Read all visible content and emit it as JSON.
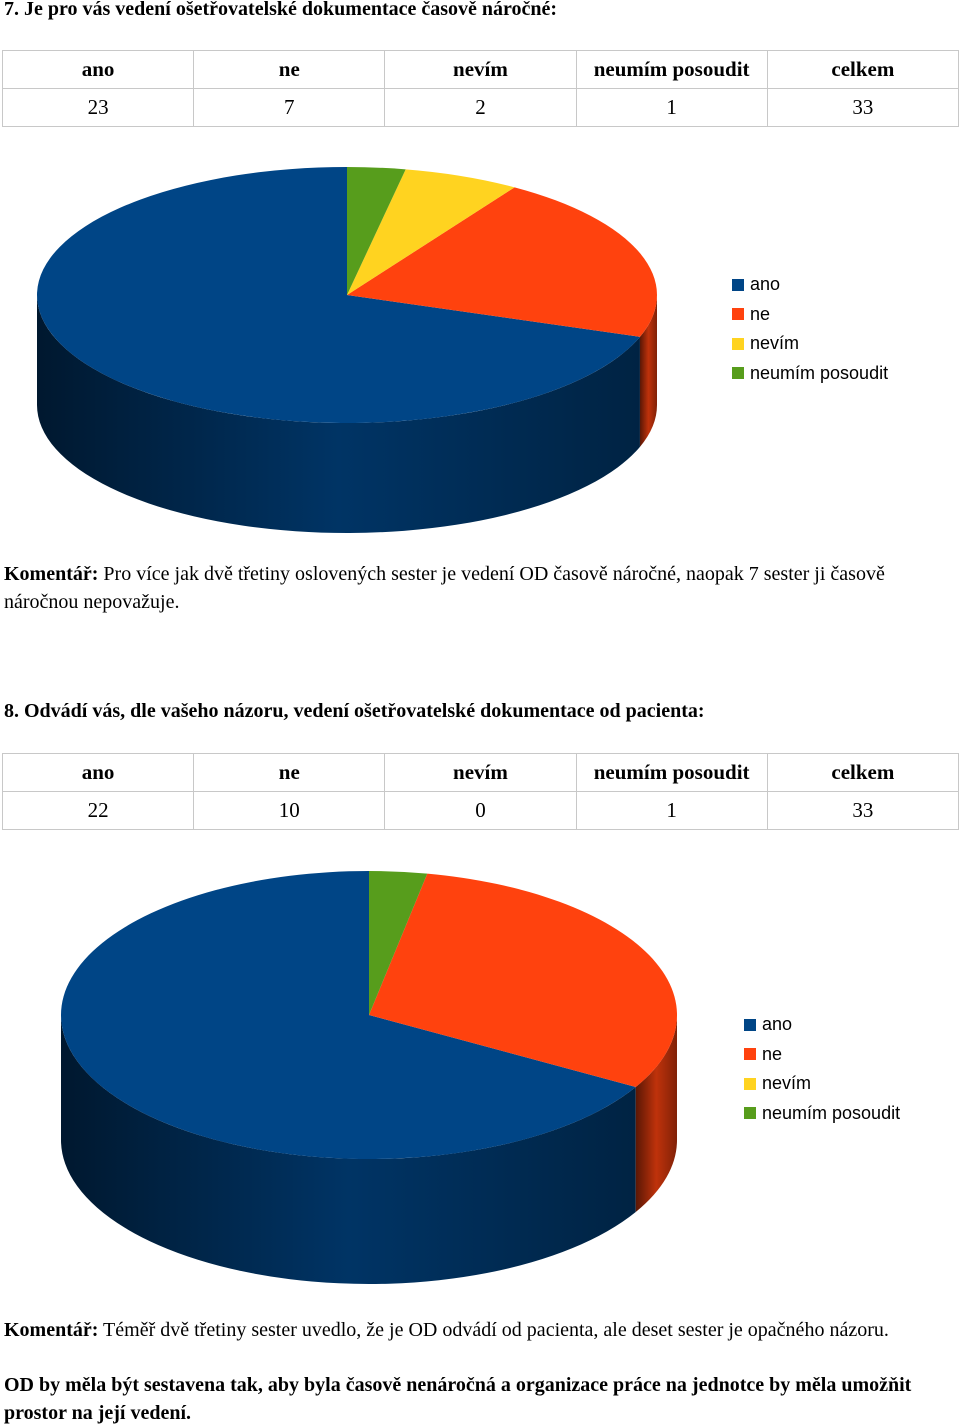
{
  "q7": {
    "title": "7. Je pro vás vedení ošetřovatelské dokumentace časově náročné:",
    "headers": [
      "ano",
      "ne",
      "nevím",
      "neumím posoudit",
      "celkem"
    ],
    "values": [
      "23",
      "7",
      "2",
      "1",
      "33"
    ],
    "comment_label": "Komentář:",
    "comment_text": " Pro více jak dvě třetiny oslovených sester je vedení OD časově náročné, naopak 7 sester ji časově náročnou nepovažuje."
  },
  "q8": {
    "title": "8. Odvádí vás, dle vašeho názoru, vedení ošetřovatelské dokumentace od pacienta:",
    "headers": [
      "ano",
      "ne",
      "nevím",
      "neumím posoudit",
      "celkem"
    ],
    "values": [
      "22",
      "10",
      "0",
      "1",
      "33"
    ],
    "comment_label": "Komentář:",
    "comment_text": " Téměř dvě třetiny sester uvedlo, že je OD odvádí od pacienta, ale deset sester je opačného názoru.",
    "conclusion": "OD by měla být sestavena tak, aby byla časově nenáročná a organizace práce na jednotce by měla umožňit prostor na její vedení."
  },
  "chart_data": [
    {
      "type": "pie",
      "categories": [
        "ano",
        "ne",
        "nevím",
        "neumím posoudit"
      ],
      "values": [
        23,
        7,
        2,
        1
      ],
      "colors": [
        "#004586",
        "#ff420e",
        "#ffd320",
        "#579d1c"
      ],
      "legend": "right"
    },
    {
      "type": "pie",
      "categories": [
        "ano",
        "ne",
        "nevím",
        "neumím posoudit"
      ],
      "values": [
        22,
        10,
        0,
        1
      ],
      "colors": [
        "#004586",
        "#ff420e",
        "#ffd320",
        "#579d1c"
      ],
      "legend": "right"
    }
  ]
}
